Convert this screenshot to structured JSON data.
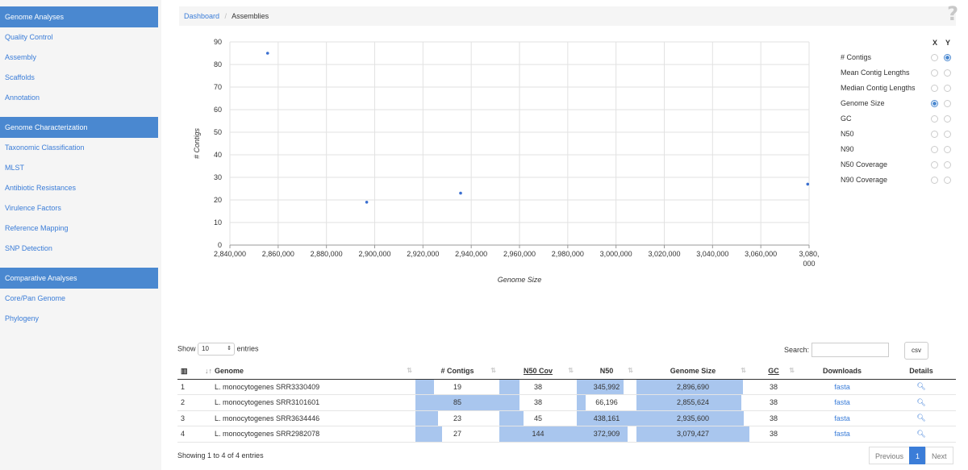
{
  "sidebar": {
    "sections": [
      {
        "title": "Genome Analyses",
        "items": [
          "Quality Control",
          "Assembly",
          "Scaffolds",
          "Annotation"
        ]
      },
      {
        "title": "Genome Characterization",
        "items": [
          "Taxonomic Classification",
          "MLST",
          "Antibiotic Resistances",
          "Virulence Factors",
          "Reference Mapping",
          "SNP Detection"
        ]
      },
      {
        "title": "Comparative Analyses",
        "items": [
          "Core/Pan Genome",
          "Phylogeny"
        ]
      }
    ]
  },
  "breadcrumb": {
    "home": "Dashboard",
    "separator": "/",
    "current": "Assemblies"
  },
  "help_icon": "?",
  "chart_data": {
    "type": "scatter",
    "xlabel": "Genome Size",
    "ylabel": "# Contigs",
    "xlim": [
      2840000,
      3080000
    ],
    "ylim": [
      0,
      90
    ],
    "x_ticks": [
      "2,840,000",
      "2,860,000",
      "2,880,000",
      "2,900,000",
      "2,920,000",
      "2,940,000",
      "2,960,000",
      "2,980,000",
      "3,000,000",
      "3,020,000",
      "3,040,000",
      "3,060,000",
      "3,080,000"
    ],
    "y_ticks": [
      "0",
      "10",
      "20",
      "30",
      "40",
      "50",
      "60",
      "70",
      "80",
      "90"
    ],
    "grid": true,
    "color": "#3b6fd0",
    "points": [
      {
        "x": 2855624,
        "y": 85
      },
      {
        "x": 2896690,
        "y": 19
      },
      {
        "x": 2935600,
        "y": 23
      },
      {
        "x": 3079427,
        "y": 27
      }
    ]
  },
  "axis_selector": {
    "x_header": "X",
    "y_header": "Y",
    "options": [
      {
        "label": "# Contigs",
        "x": false,
        "y": true
      },
      {
        "label": "Mean Contig Lengths",
        "x": false,
        "y": false
      },
      {
        "label": "Median Contig Lengths",
        "x": false,
        "y": false
      },
      {
        "label": "Genome Size",
        "x": true,
        "y": false
      },
      {
        "label": "GC",
        "x": false,
        "y": false
      },
      {
        "label": "N50",
        "x": false,
        "y": false
      },
      {
        "label": "N90",
        "x": false,
        "y": false
      },
      {
        "label": "N50 Coverage",
        "x": false,
        "y": false
      },
      {
        "label": "N90 Coverage",
        "x": false,
        "y": false
      }
    ]
  },
  "table_controls": {
    "show_label": "Show",
    "entries_value": "10",
    "entries_label": "entries",
    "search_label": "Search:",
    "search_value": "",
    "csv_label": "csv"
  },
  "table": {
    "headers": {
      "genome": "Genome",
      "contigs": "# Contigs",
      "n50cov": "N50 Cov",
      "n50": "N50",
      "size": "Genome Size",
      "gc": "GC",
      "downloads": "Downloads",
      "details": "Details"
    },
    "rows": [
      {
        "idx": "1",
        "genome": "L. monocytogenes SRR3330409",
        "contigs": "19",
        "contigs_frac": 0.22,
        "n50cov": "38",
        "n50cov_frac": 0.26,
        "n50": "345,992",
        "n50_frac": 0.79,
        "size": "2,896,690",
        "size_frac": 0.94,
        "gc": "38",
        "download": "fasta"
      },
      {
        "idx": "2",
        "genome": "L. monocytogenes SRR3101601",
        "contigs": "85",
        "contigs_frac": 1.0,
        "n50cov": "38",
        "n50cov_frac": 0.26,
        "n50": "66,196",
        "n50_frac": 0.15,
        "size": "2,855,624",
        "size_frac": 0.93,
        "gc": "38",
        "download": "fasta"
      },
      {
        "idx": "3",
        "genome": "L. monocytogenes SRR3634446",
        "contigs": "23",
        "contigs_frac": 0.27,
        "n50cov": "45",
        "n50cov_frac": 0.31,
        "n50": "438,161",
        "n50_frac": 1.0,
        "size": "2,935,600",
        "size_frac": 0.95,
        "gc": "38",
        "download": "fasta"
      },
      {
        "idx": "4",
        "genome": "L. monocytogenes SRR2982078",
        "contigs": "27",
        "contigs_frac": 0.32,
        "n50cov": "144",
        "n50cov_frac": 1.0,
        "n50": "372,909",
        "n50_frac": 0.85,
        "size": "3,079,427",
        "size_frac": 1.0,
        "gc": "38",
        "download": "fasta"
      }
    ]
  },
  "footer": {
    "info": "Showing 1 to 4 of 4 entries",
    "prev": "Previous",
    "page": "1",
    "next": "Next"
  }
}
